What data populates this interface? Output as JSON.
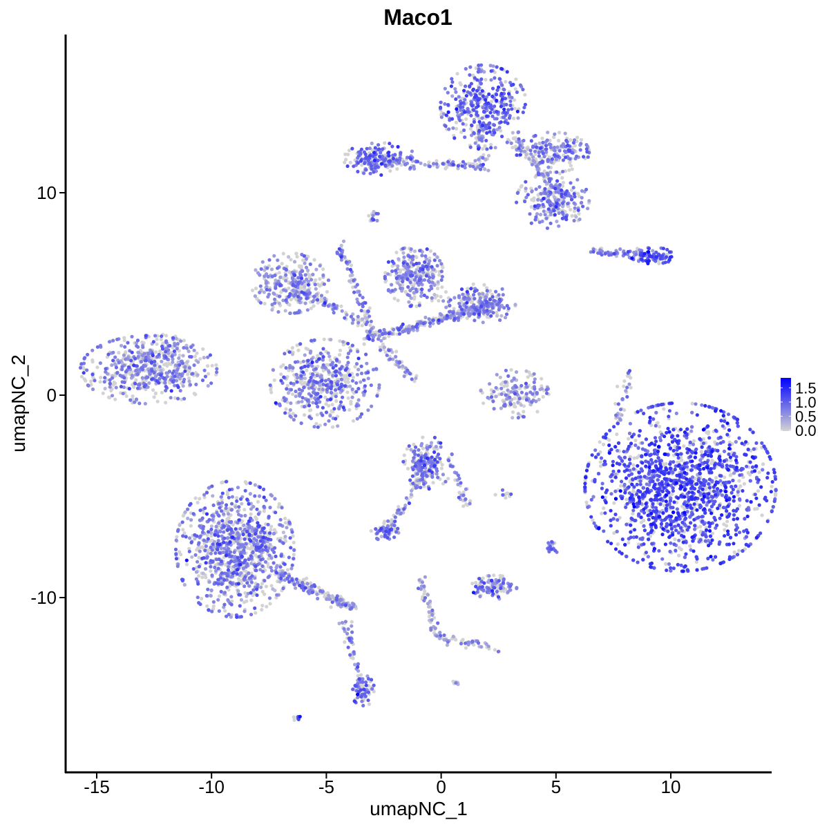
{
  "chart_data": {
    "type": "scatter",
    "title": "Maco1",
    "xlabel": "umapNC_1",
    "ylabel": "umapNC_2",
    "xlim": [
      -16.35,
      14.4
    ],
    "ylim": [
      -18.6,
      17.8
    ],
    "x_ticks": [
      "-15",
      "-10",
      "-5",
      "0",
      "5",
      "10"
    ],
    "x_tick_values": [
      -15,
      -10,
      -5,
      0,
      5,
      10
    ],
    "y_ticks": [
      "-10",
      "0",
      "10"
    ],
    "y_tick_values": [
      -10,
      0,
      10
    ],
    "grid": false,
    "color_scale": {
      "low": "#d3d3d3",
      "high": "#0000ff",
      "min": 0.0,
      "max": 1.85
    },
    "legend": {
      "position": "right",
      "labels": [
        "1.5",
        "1.0",
        "0.5",
        "0.0"
      ],
      "values": [
        1.5,
        1.0,
        0.5,
        0.0
      ]
    },
    "clusters": [
      {
        "center": [
          -12.74,
          1.26
        ],
        "spread": [
          1.5,
          0.85
        ],
        "n": 520,
        "expr": 0.55
      },
      {
        "center": [
          -11.6,
          2.4
        ],
        "spread": [
          0.4,
          0.4
        ],
        "n": 40,
        "expr": 0.5
      },
      {
        "center": [
          -8.98,
          -7.6
        ],
        "spread": [
          1.3,
          1.7
        ],
        "n": 950,
        "expr": 0.6
      },
      {
        "center": [
          -3.4,
          -14.6
        ],
        "spread": [
          0.25,
          0.4
        ],
        "n": 70,
        "expr": 0.8
      },
      {
        "center": [
          10.42,
          -4.54
        ],
        "spread": [
          2.1,
          2.1
        ],
        "n": 1900,
        "expr": 0.95
      },
      {
        "center": [
          1.85,
          14.23
        ],
        "spread": [
          0.95,
          1.05
        ],
        "n": 380,
        "expr": 0.75
      },
      {
        "center": [
          4.86,
          9.62
        ],
        "spread": [
          0.8,
          0.7
        ],
        "n": 220,
        "expr": 0.6
      },
      {
        "center": [
          4.86,
          12.0
        ],
        "spread": [
          0.8,
          0.5
        ],
        "n": 160,
        "expr": 0.6
      },
      {
        "center": [
          -2.66,
          11.67
        ],
        "spread": [
          0.8,
          0.4
        ],
        "n": 170,
        "expr": 0.7
      },
      {
        "center": [
          -5.07,
          0.58
        ],
        "spread": [
          1.2,
          1.1
        ],
        "n": 480,
        "expr": 0.6
      },
      {
        "center": [
          -6.58,
          5.53
        ],
        "spread": [
          0.85,
          0.75
        ],
        "n": 260,
        "expr": 0.5
      },
      {
        "center": [
          -1.16,
          5.87
        ],
        "spread": [
          0.65,
          0.75
        ],
        "n": 260,
        "expr": 0.55
      },
      {
        "center": [
          1.55,
          4.5
        ],
        "spread": [
          0.85,
          0.5
        ],
        "n": 210,
        "expr": 0.55
      },
      {
        "center": [
          3.2,
          0.07
        ],
        "spread": [
          0.75,
          0.6
        ],
        "n": 160,
        "expr": 0.45
      },
      {
        "center": [
          -0.56,
          -3.34
        ],
        "spread": [
          0.55,
          0.65
        ],
        "n": 190,
        "expr": 0.6
      },
      {
        "center": [
          -2.36,
          -6.76
        ],
        "spread": [
          0.35,
          0.22
        ],
        "n": 60,
        "expr": 0.7
      },
      {
        "center": [
          2.3,
          -9.49
        ],
        "spread": [
          0.5,
          0.3
        ],
        "n": 110,
        "expr": 0.65
      },
      {
        "center": [
          9.25,
          6.89
        ],
        "spread": [
          0.5,
          0.2
        ],
        "n": 80,
        "expr": 0.9
      },
      {
        "center": [
          -2.97,
          8.77
        ],
        "spread": [
          0.15,
          0.15
        ],
        "n": 15,
        "expr": 0.5
      },
      {
        "center": [
          4.86,
          -7.44
        ],
        "spread": [
          0.15,
          0.2
        ],
        "n": 20,
        "expr": 0.7
      },
      {
        "center": [
          -6.27,
          -15.97
        ],
        "spread": [
          0.1,
          0.08
        ],
        "n": 8,
        "expr": 0.9
      },
      {
        "center": [
          2.75,
          -4.88
        ],
        "spread": [
          0.2,
          0.1
        ],
        "n": 10,
        "expr": 0.6
      },
      {
        "center": [
          0.6,
          -14.2
        ],
        "spread": [
          0.08,
          0.08
        ],
        "n": 6,
        "expr": 0.3
      }
    ],
    "bridges": [
      {
        "from": [
          -7.17,
          -8.8
        ],
        "to": [
          -3.86,
          -10.5
        ],
        "n": 180,
        "expr": 0.45
      },
      {
        "from": [
          -4.17,
          -11.2
        ],
        "to": [
          -3.41,
          -14.6
        ],
        "n": 50,
        "expr": 0.5
      },
      {
        "from": [
          3.05,
          12.7
        ],
        "to": [
          5.3,
          9.9
        ],
        "n": 90,
        "expr": 0.5
      },
      {
        "from": [
          -2.8,
          11.5
        ],
        "to": [
          1.85,
          11.33
        ],
        "n": 80,
        "expr": 0.55
      },
      {
        "from": [
          1.6,
          13.0
        ],
        "to": [
          1.85,
          11.0
        ],
        "n": 40,
        "expr": 0.4
      },
      {
        "from": [
          -6.58,
          5.53
        ],
        "to": [
          -2.36,
          2.8
        ],
        "n": 110,
        "expr": 0.5
      },
      {
        "from": [
          -4.47,
          7.58
        ],
        "to": [
          -2.97,
          3.14
        ],
        "n": 70,
        "expr": 0.55
      },
      {
        "from": [
          -3.27,
          2.8
        ],
        "to": [
          2.45,
          4.5
        ],
        "n": 220,
        "expr": 0.5
      },
      {
        "from": [
          -2.66,
          2.46
        ],
        "to": [
          -1.16,
          0.75
        ],
        "n": 50,
        "expr": 0.5
      },
      {
        "from": [
          -0.9,
          -4.0
        ],
        "to": [
          -2.36,
          -6.76
        ],
        "n": 50,
        "expr": 0.5
      },
      {
        "from": [
          -0.86,
          -9.15
        ],
        "to": [
          -0.26,
          -11.88
        ],
        "n": 45,
        "expr": 0.4
      },
      {
        "from": [
          -0.26,
          -11.88
        ],
        "to": [
          2.45,
          -12.56
        ],
        "n": 50,
        "expr": 0.45
      },
      {
        "from": [
          8.17,
          1.09
        ],
        "to": [
          7.72,
          -1.3
        ],
        "n": 35,
        "expr": 0.5
      },
      {
        "from": [
          6.5,
          7.06
        ],
        "to": [
          9.22,
          6.89
        ],
        "n": 60,
        "expr": 0.55
      },
      {
        "from": [
          0.6,
          -3.6
        ],
        "to": [
          1.2,
          -5.6
        ],
        "n": 30,
        "expr": 0.5
      }
    ]
  }
}
